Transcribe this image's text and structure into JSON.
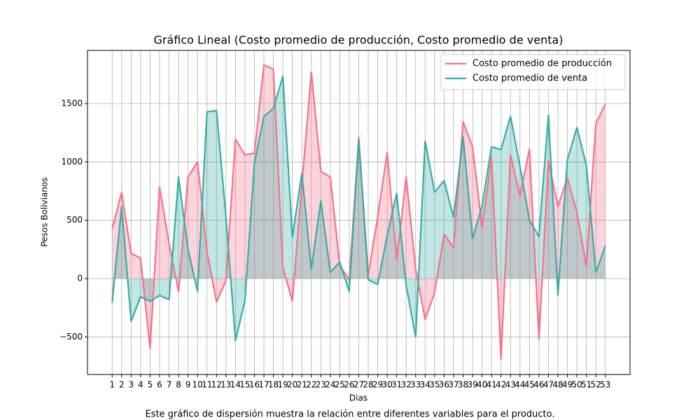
{
  "chart_data": {
    "type": "line",
    "title": "Gráfico Lineal (Costo promedio de producción, Costo promedio de venta)",
    "xlabel": "Dias",
    "ylabel": "Pesos Bolivianos",
    "caption": "Este gráfico de dispersión muestra la relación entre diferentes variables para el producto.",
    "x": [
      1,
      2,
      3,
      4,
      5,
      6,
      7,
      8,
      9,
      10,
      11,
      12,
      13,
      14,
      15,
      16,
      17,
      18,
      19,
      20,
      21,
      22,
      23,
      24,
      25,
      26,
      27,
      28,
      29,
      30,
      31,
      32,
      33,
      34,
      35,
      36,
      37,
      38,
      39,
      40,
      41,
      42,
      43,
      44,
      45,
      46,
      47,
      48,
      49,
      50,
      51,
      52,
      53
    ],
    "xticks": [
      1,
      2,
      3,
      4,
      5,
      6,
      7,
      8,
      9,
      10,
      11,
      12,
      13,
      14,
      15,
      16,
      17,
      18,
      19,
      20,
      21,
      22,
      23,
      24,
      25,
      26,
      27,
      28,
      29,
      30,
      31,
      32,
      33,
      34,
      35,
      36,
      37,
      38,
      39,
      40,
      41,
      42,
      43,
      44,
      45,
      46,
      47,
      48,
      49,
      50,
      51,
      52,
      53
    ],
    "xlim": [
      -1.6,
      55.6
    ],
    "ylim": [
      -822,
      1956
    ],
    "yticks": [
      {
        "value": -500,
        "label": "−500"
      },
      0,
      500,
      1000,
      1500
    ],
    "grid": true,
    "legend": "upper right",
    "fill": true,
    "series": [
      {
        "name": "Costo promedio de producción",
        "color": "#f77189",
        "values": [
          425,
          740,
          215,
          175,
          -600,
          785,
          300,
          -110,
          870,
          1000,
          230,
          -200,
          -20,
          1195,
          1060,
          1075,
          1830,
          1795,
          100,
          -195,
          800,
          1770,
          920,
          870,
          110,
          -10,
          1210,
          30,
          530,
          1080,
          160,
          870,
          80,
          -350,
          -120,
          380,
          265,
          1345,
          1130,
          440,
          1040,
          -690,
          1060,
          710,
          1110,
          -520,
          1010,
          620,
          860,
          570,
          105,
          1330,
          1495
        ]
      },
      {
        "name": "Costo promedio de venta",
        "color": "#36ada4",
        "values": [
          -205,
          620,
          -365,
          -155,
          -195,
          -145,
          -180,
          870,
          250,
          -110,
          1430,
          1440,
          530,
          -530,
          -190,
          990,
          1390,
          1460,
          1735,
          355,
          900,
          80,
          665,
          55,
          140,
          -110,
          1190,
          -10,
          -50,
          370,
          730,
          -60,
          -500,
          1180,
          740,
          840,
          525,
          1215,
          345,
          620,
          1130,
          1105,
          1390,
          960,
          500,
          360,
          1400,
          -140,
          1020,
          1295,
          970,
          55,
          280
        ]
      }
    ]
  }
}
